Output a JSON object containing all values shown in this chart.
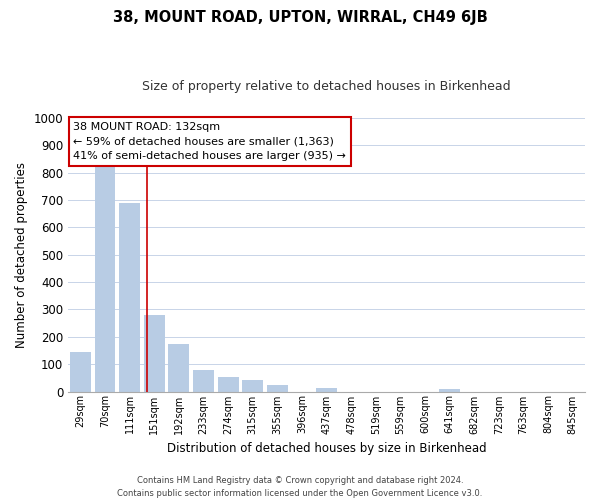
{
  "title": "38, MOUNT ROAD, UPTON, WIRRAL, CH49 6JB",
  "subtitle": "Size of property relative to detached houses in Birkenhead",
  "xlabel": "Distribution of detached houses by size in Birkenhead",
  "ylabel": "Number of detached properties",
  "categories": [
    "29sqm",
    "70sqm",
    "111sqm",
    "151sqm",
    "192sqm",
    "233sqm",
    "274sqm",
    "315sqm",
    "355sqm",
    "396sqm",
    "437sqm",
    "478sqm",
    "519sqm",
    "559sqm",
    "600sqm",
    "641sqm",
    "682sqm",
    "723sqm",
    "763sqm",
    "804sqm",
    "845sqm"
  ],
  "values": [
    145,
    828,
    688,
    278,
    172,
    80,
    52,
    43,
    22,
    0,
    12,
    0,
    0,
    0,
    0,
    10,
    0,
    0,
    0,
    0,
    0
  ],
  "bar_color": "#b8cce4",
  "bar_edge_color": "#a0b8d8",
  "red_line_x": 2.72,
  "annotation_title": "38 MOUNT ROAD: 132sqm",
  "annotation_line1": "← 59% of detached houses are smaller (1,363)",
  "annotation_line2": "41% of semi-detached houses are larger (935) →",
  "annotation_box_color": "#ffffff",
  "annotation_box_edge_color": "#cc0000",
  "red_line_color": "#cc0000",
  "ylim": [
    0,
    1000
  ],
  "yticks": [
    0,
    100,
    200,
    300,
    400,
    500,
    600,
    700,
    800,
    900,
    1000
  ],
  "footer_line1": "Contains HM Land Registry data © Crown copyright and database right 2024.",
  "footer_line2": "Contains public sector information licensed under the Open Government Licence v3.0.",
  "background_color": "#ffffff",
  "grid_color": "#c8d4e8"
}
